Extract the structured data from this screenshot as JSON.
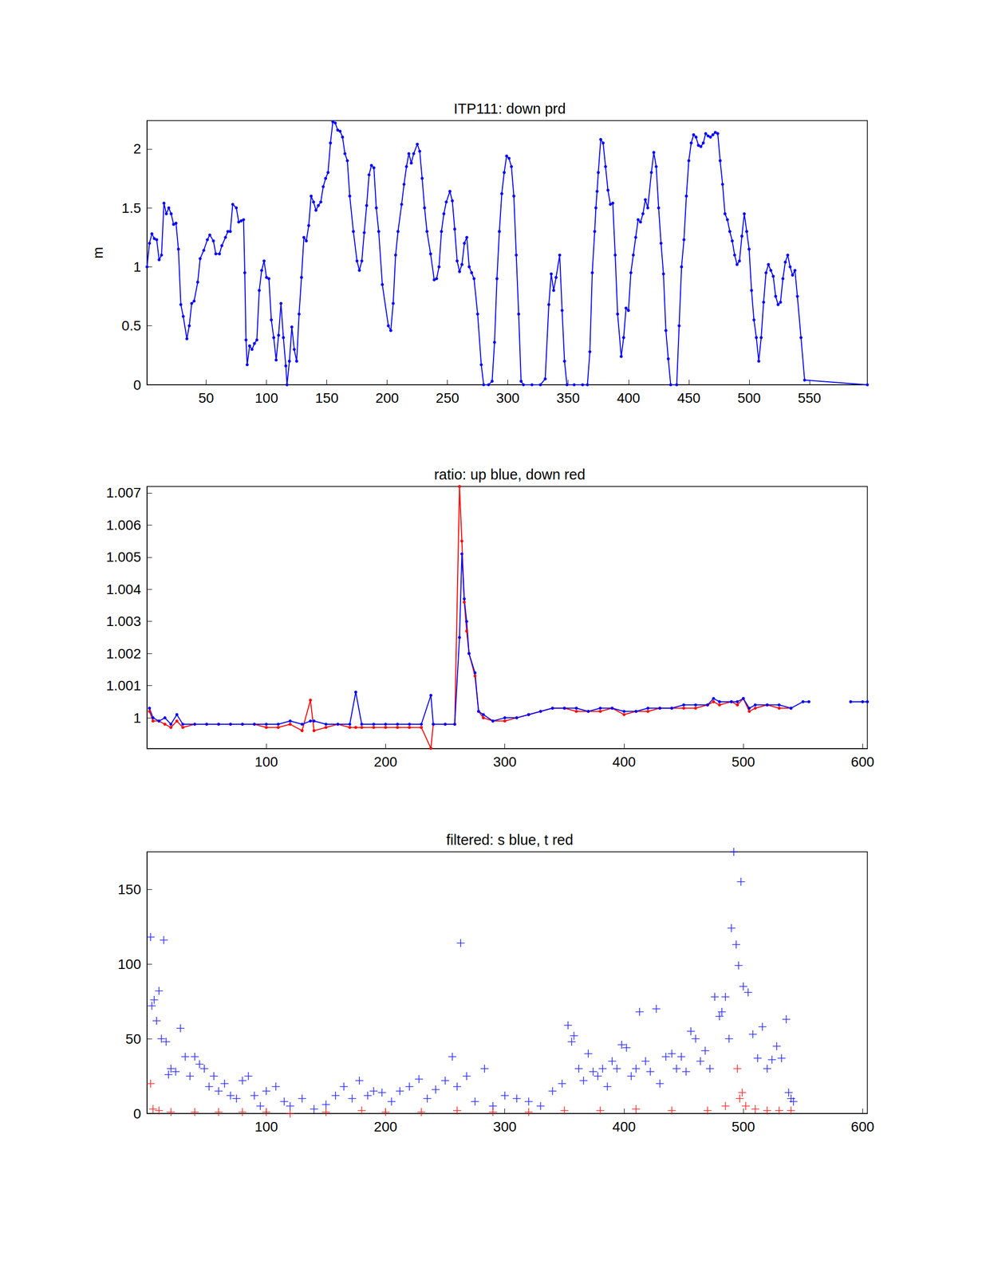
{
  "chart_data": [
    {
      "type": "line",
      "title": "ITP111: down prd",
      "ylabel": "m",
      "xlim": [
        1,
        598
      ],
      "xticks": [
        50,
        100,
        150,
        200,
        250,
        300,
        350,
        400,
        450,
        500,
        550
      ],
      "ylim": [
        0,
        2.24
      ],
      "yticks": [
        0,
        0.5,
        1,
        1.5,
        2
      ],
      "grid": false,
      "series": [
        {
          "color": "#0000ff",
          "marker": "circle",
          "line_style": "solid",
          "x": [
            1,
            3,
            5,
            7,
            9,
            11,
            13,
            15,
            17,
            19,
            21,
            23,
            25,
            27,
            29,
            31,
            34,
            36,
            38,
            40,
            43,
            45,
            48,
            51,
            53,
            56,
            58,
            61,
            63,
            66,
            68,
            70,
            72,
            75,
            77,
            79,
            81,
            82,
            83,
            84,
            86,
            88,
            90,
            92,
            94,
            96,
            98,
            100,
            102,
            104,
            106,
            108,
            110,
            112,
            114,
            116,
            117,
            119,
            121,
            123,
            125,
            127,
            129,
            131,
            133,
            135,
            137,
            139,
            141,
            143,
            145,
            147,
            149,
            151,
            153,
            155,
            157,
            159,
            161,
            163,
            165,
            167,
            169,
            172,
            175,
            177,
            179,
            181,
            183,
            185,
            187,
            189,
            191,
            193,
            196,
            201,
            203,
            205,
            207,
            209,
            212,
            214,
            216,
            218,
            220,
            222,
            225,
            227,
            229,
            231,
            233,
            236,
            239,
            241,
            243,
            245,
            247,
            249,
            252,
            254,
            256,
            258,
            260,
            262,
            264,
            266,
            268,
            270,
            272,
            275,
            278,
            280,
            284,
            287,
            289,
            291,
            293,
            295,
            297,
            299,
            301,
            303,
            305,
            307,
            309,
            311,
            313,
            320,
            327,
            331,
            334,
            336,
            338,
            340,
            343,
            345,
            347,
            349,
            355,
            362,
            366,
            368,
            370,
            372,
            373,
            374,
            375,
            377,
            379,
            381,
            383,
            385,
            387,
            389,
            391,
            394,
            396,
            398,
            400,
            402,
            404,
            406,
            408,
            410,
            412,
            414,
            416,
            419,
            421,
            423,
            425,
            427,
            429,
            431,
            433,
            435,
            440,
            442,
            444,
            446,
            448,
            450,
            452,
            454,
            456,
            458,
            460,
            462,
            464,
            466,
            468,
            470,
            472,
            474,
            476,
            478,
            480,
            482,
            484,
            486,
            488,
            490,
            492,
            494,
            496,
            498,
            500,
            502,
            504,
            506,
            508,
            510,
            512,
            514,
            516,
            518,
            520,
            522,
            524,
            526,
            528,
            530,
            532,
            534,
            536,
            538,
            540,
            543,
            546,
            598
          ],
          "values": [
            1.0,
            1.2,
            1.28,
            1.24,
            1.23,
            1.06,
            1.1,
            1.54,
            1.45,
            1.5,
            1.45,
            1.36,
            1.37,
            1.15,
            0.68,
            0.58,
            0.39,
            0.5,
            0.69,
            0.71,
            0.87,
            1.07,
            1.14,
            1.23,
            1.27,
            1.22,
            1.11,
            1.11,
            1.18,
            1.25,
            1.3,
            1.3,
            1.53,
            1.5,
            1.38,
            1.39,
            1.4,
            0.95,
            0.38,
            0.17,
            0.33,
            0.3,
            0.35,
            0.38,
            0.8,
            0.97,
            1.05,
            0.91,
            0.9,
            0.55,
            0.4,
            0.21,
            0.42,
            0.69,
            0.4,
            0.16,
            0.0,
            0.2,
            0.49,
            0.3,
            0.2,
            0.6,
            0.91,
            1.25,
            1.22,
            1.35,
            1.6,
            1.55,
            1.48,
            1.52,
            1.55,
            1.68,
            1.75,
            1.8,
            2.05,
            2.23,
            2.22,
            2.16,
            2.15,
            2.1,
            1.96,
            1.9,
            1.6,
            1.3,
            1.05,
            0.97,
            1.05,
            1.29,
            1.52,
            1.78,
            1.86,
            1.84,
            1.5,
            1.3,
            0.85,
            0.5,
            0.46,
            0.69,
            1.1,
            1.3,
            1.53,
            1.7,
            1.85,
            1.96,
            1.88,
            1.96,
            2.04,
            1.98,
            1.75,
            1.5,
            1.3,
            1.11,
            0.89,
            0.9,
            1.0,
            1.3,
            1.45,
            1.55,
            1.64,
            1.56,
            1.32,
            1.05,
            0.96,
            1.02,
            1.2,
            1.25,
            1.0,
            0.95,
            0.9,
            0.6,
            0.17,
            0.0,
            0.0,
            0.03,
            0.36,
            0.9,
            1.3,
            1.62,
            1.8,
            1.94,
            1.92,
            1.85,
            1.6,
            1.1,
            0.6,
            0.03,
            0.0,
            0.0,
            0.0,
            0.05,
            0.68,
            0.94,
            0.8,
            0.91,
            1.1,
            0.63,
            0.2,
            0.0,
            0.0,
            0.0,
            0.0,
            0.28,
            0.95,
            1.3,
            1.5,
            1.64,
            1.8,
            2.08,
            2.05,
            1.85,
            1.65,
            1.53,
            1.54,
            1.1,
            0.6,
            0.24,
            0.4,
            0.65,
            0.63,
            0.95,
            1.1,
            1.25,
            1.4,
            1.38,
            1.45,
            1.57,
            1.5,
            1.8,
            1.97,
            1.85,
            1.5,
            1.2,
            0.94,
            0.46,
            0.22,
            0.0,
            0.0,
            0.5,
            1.0,
            1.23,
            1.6,
            1.9,
            2.05,
            2.12,
            2.1,
            2.03,
            2.02,
            2.05,
            2.13,
            2.11,
            2.1,
            2.12,
            2.14,
            2.13,
            1.9,
            1.7,
            1.45,
            1.4,
            1.3,
            1.22,
            1.1,
            1.02,
            1.05,
            1.26,
            1.45,
            1.3,
            1.15,
            0.8,
            0.55,
            0.4,
            0.2,
            0.4,
            0.7,
            0.95,
            1.02,
            0.97,
            0.92,
            0.75,
            0.68,
            0.7,
            0.9,
            1.04,
            1.1,
            1.0,
            0.93,
            0.97,
            0.75,
            0.4,
            0.04,
            0.0
          ]
        }
      ]
    },
    {
      "type": "line",
      "title": "ratio: up blue, down red",
      "xlim": [
        0,
        604
      ],
      "xticks": [
        100,
        200,
        300,
        400,
        500,
        600
      ],
      "ylim": [
        0.99904,
        1.0072
      ],
      "yticks": [
        1,
        1.001,
        1.002,
        1.003,
        1.004,
        1.005,
        1.006,
        1.007
      ],
      "grid": false,
      "x": [
        2,
        5,
        10,
        15,
        20,
        25,
        30,
        40,
        50,
        60,
        70,
        80,
        90,
        100,
        110,
        120,
        130,
        137,
        140,
        150,
        160,
        170,
        175,
        180,
        190,
        200,
        210,
        220,
        230,
        238,
        240,
        250,
        258,
        262,
        264,
        266,
        268,
        270,
        275,
        278,
        282,
        290,
        300,
        310,
        320,
        330,
        340,
        350,
        360,
        370,
        380,
        390,
        400,
        410,
        420,
        430,
        440,
        450,
        460,
        470,
        475,
        480,
        490,
        495,
        500,
        505,
        510,
        520,
        530,
        540,
        550,
        555,
        570,
        590,
        600,
        604
      ],
      "series": [
        {
          "name": "down",
          "color": "#ff0000",
          "marker": "circle",
          "line_style": "solid",
          "values": [
            1.0002,
            0.9999,
            0.9999,
            0.9998,
            0.9997,
            0.9999,
            0.9997,
            0.9998,
            0.9998,
            0.9998,
            0.9998,
            0.9998,
            0.9998,
            0.9997,
            0.9997,
            0.9998,
            0.9996,
            1.00055,
            0.9996,
            0.9997,
            0.9998,
            0.9997,
            0.9997,
            0.9997,
            0.9997,
            0.9997,
            0.9997,
            0.9997,
            0.9997,
            0.99905,
            0.9998,
            0.9998,
            0.9998,
            1.0072,
            1.0055,
            1.0036,
            1.0027,
            1.002,
            1.0013,
            1.0002,
            1.0,
            0.9999,
            0.9999,
            1.0,
            1.0001,
            1.0002,
            1.0003,
            1.0003,
            1.0002,
            1.0002,
            1.0002,
            1.0003,
            1.0001,
            1.0002,
            1.0002,
            1.0003,
            1.0003,
            1.0003,
            1.0003,
            1.0004,
            1.0005,
            1.0004,
            1.0005,
            1.0004,
            1.0006,
            1.0002,
            1.0003,
            1.0004,
            1.0003,
            1.0003,
            null,
            null,
            null,
            null,
            null,
            null
          ]
        },
        {
          "name": "up",
          "color": "#0000ff",
          "marker": "circle",
          "line_style": "solid",
          "values": [
            1.0003,
            1.0,
            0.9999,
            1.0,
            0.9998,
            1.0001,
            0.9998,
            0.9998,
            0.9998,
            0.9998,
            0.9998,
            0.9998,
            0.9998,
            0.9998,
            0.9998,
            0.9999,
            0.9998,
            0.9999,
            0.9999,
            0.9998,
            0.9998,
            0.9998,
            1.0008,
            0.9998,
            0.9998,
            0.9998,
            0.9998,
            0.9998,
            0.9998,
            1.0007,
            0.9998,
            0.9998,
            0.9998,
            1.0025,
            1.0051,
            1.0037,
            1.003,
            1.002,
            1.0014,
            1.0002,
            1.0001,
            0.9999,
            1.0,
            1.0,
            1.0001,
            1.0002,
            1.0003,
            1.0003,
            1.0003,
            1.0002,
            1.0003,
            1.0003,
            1.0002,
            1.0002,
            1.0003,
            1.0003,
            1.0003,
            1.0004,
            1.0004,
            1.0004,
            1.0006,
            1.0005,
            1.0005,
            1.0005,
            1.0006,
            1.0003,
            1.0004,
            1.0004,
            1.0004,
            1.0003,
            1.0005,
            1.0005,
            null,
            1.0005,
            1.0005,
            1.0005
          ]
        }
      ]
    },
    {
      "type": "scatter",
      "title": "filtered: s blue, t red",
      "xlim": [
        0,
        604
      ],
      "xticks": [
        100,
        200,
        300,
        400,
        500,
        600
      ],
      "ylim": [
        0,
        175
      ],
      "yticks": [
        0,
        50,
        100,
        150
      ],
      "grid": false,
      "series": [
        {
          "name": "s",
          "color": "#0000ff",
          "marker": "plus",
          "x": [
            3,
            4,
            6,
            8,
            10,
            12,
            14,
            16,
            18,
            20,
            24,
            28,
            32,
            36,
            40,
            44,
            48,
            52,
            56,
            60,
            65,
            70,
            75,
            80,
            85,
            90,
            95,
            100,
            108,
            115,
            120,
            130,
            140,
            150,
            158,
            165,
            172,
            178,
            185,
            190,
            197,
            205,
            212,
            220,
            228,
            235,
            242,
            250,
            256,
            260,
            263,
            268,
            275,
            283,
            290,
            300,
            310,
            320,
            330,
            340,
            348,
            353,
            356,
            358,
            362,
            366,
            370,
            374,
            378,
            382,
            386,
            390,
            394,
            398,
            402,
            406,
            410,
            413,
            418,
            422,
            427,
            430,
            435,
            440,
            444,
            448,
            452,
            456,
            460,
            464,
            468,
            472,
            476,
            480,
            482,
            485,
            488,
            490,
            492,
            494,
            496,
            498,
            500,
            504,
            508,
            512,
            516,
            520,
            524,
            528,
            532,
            536,
            538,
            540,
            542
          ],
          "values": [
            118,
            72,
            76,
            62,
            82,
            50,
            116,
            48,
            26,
            30,
            28,
            57,
            38,
            25,
            38,
            33,
            30,
            18,
            25,
            15,
            20,
            12,
            10,
            22,
            25,
            12,
            5,
            15,
            18,
            8,
            5,
            10,
            3,
            6,
            12,
            18,
            10,
            22,
            12,
            15,
            14,
            8,
            15,
            18,
            23,
            10,
            16,
            22,
            38,
            18,
            114,
            25,
            8,
            30,
            5,
            12,
            10,
            8,
            5,
            15,
            20,
            59,
            48,
            52,
            30,
            22,
            40,
            28,
            25,
            30,
            18,
            35,
            30,
            46,
            44,
            25,
            30,
            68,
            35,
            28,
            70,
            20,
            38,
            40,
            30,
            38,
            28,
            55,
            50,
            35,
            42,
            30,
            78,
            65,
            68,
            78,
            50,
            124,
            175,
            113,
            99,
            155,
            85,
            81,
            53,
            37,
            58,
            30,
            36,
            45,
            37,
            63,
            14,
            10,
            8
          ]
        },
        {
          "name": "t",
          "color": "#ff0000",
          "marker": "plus",
          "x": [
            3,
            5,
            10,
            20,
            40,
            60,
            80,
            100,
            120,
            150,
            180,
            200,
            230,
            260,
            290,
            320,
            350,
            380,
            410,
            440,
            470,
            485,
            495,
            497,
            499,
            502,
            510,
            520,
            530,
            540
          ],
          "values": [
            20,
            3,
            2,
            1,
            1,
            1,
            1,
            1,
            0,
            1,
            2,
            1,
            1,
            2,
            1,
            1,
            2,
            2,
            3,
            2,
            2,
            5,
            30,
            10,
            14,
            5,
            3,
            2,
            2,
            2
          ]
        }
      ]
    }
  ]
}
